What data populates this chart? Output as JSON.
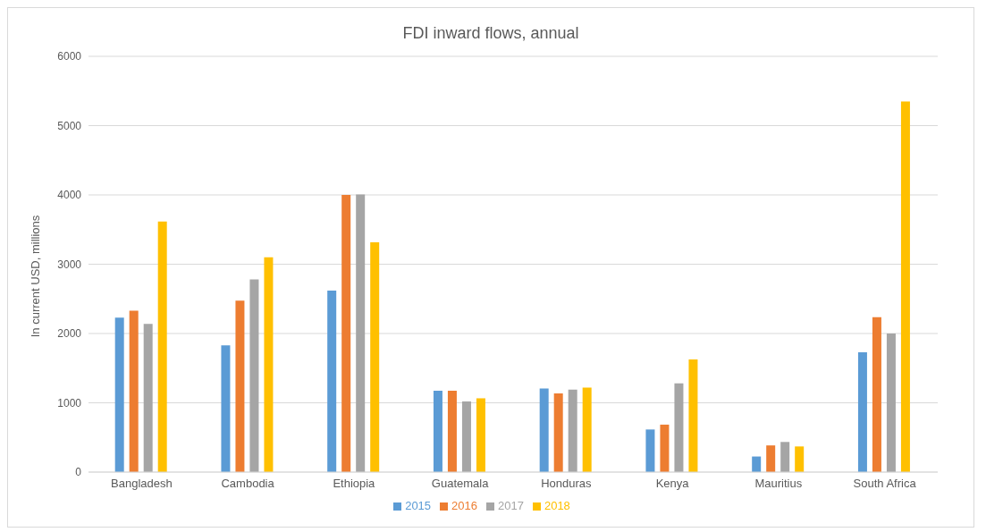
{
  "chart_data": {
    "type": "bar",
    "title": "FDI  inward flows, annual",
    "ylabel": "In current USD, millions",
    "categories": [
      "Bangladesh",
      "Cambodia",
      "Ethiopia",
      "Guatemala",
      "Honduras",
      "Kenya",
      "Mauritius",
      "South Africa"
    ],
    "series": [
      {
        "name": "2015",
        "color": "#5b9bd5",
        "values": [
          2230,
          1830,
          2620,
          1175,
          1205,
          615,
          225,
          1730
        ]
      },
      {
        "name": "2016",
        "color": "#ed7d31",
        "values": [
          2330,
          2475,
          4000,
          1175,
          1135,
          685,
          385,
          2235
        ]
      },
      {
        "name": "2017",
        "color": "#a5a5a5",
        "values": [
          2140,
          2780,
          4005,
          1020,
          1190,
          1280,
          435,
          2000
        ]
      },
      {
        "name": "2018",
        "color": "#ffc000",
        "values": [
          3615,
          3100,
          3315,
          1065,
          1220,
          1625,
          370,
          5350
        ]
      }
    ],
    "ylim": [
      0,
      6000
    ],
    "yticks": [
      0,
      1000,
      2000,
      3000,
      4000,
      5000,
      6000
    ],
    "grid": "y",
    "legend": "bottom"
  }
}
